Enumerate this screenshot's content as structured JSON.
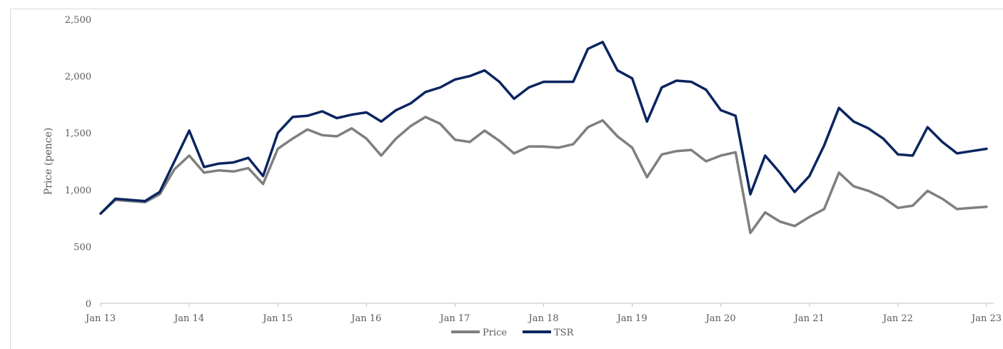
{
  "chart_data": {
    "type": "line",
    "title": "",
    "xlabel": "",
    "ylabel": "Price (pence)",
    "ylim": [
      0,
      2500
    ],
    "yticks": [
      0,
      500,
      1000,
      1500,
      2000,
      2500
    ],
    "ytick_labels": [
      "0",
      "500",
      "1,000",
      "1,500",
      "2,000",
      "2,500"
    ],
    "xlim": [
      "2013-01",
      "2023-01"
    ],
    "xticks": [
      "2013-01",
      "2014-01",
      "2015-01",
      "2016-01",
      "2017-01",
      "2018-01",
      "2019-01",
      "2020-01",
      "2021-01",
      "2022-01",
      "2023-01"
    ],
    "xtick_labels": [
      "Jan 13",
      "Jan 14",
      "Jan 15",
      "Jan 16",
      "Jan 17",
      "Jan 18",
      "Jan 19",
      "Jan 20",
      "Jan 21",
      "Jan 22",
      "Jan 23"
    ],
    "grid": false,
    "legend_position": "bottom-center",
    "series": [
      {
        "name": "Price",
        "color": "#7f7f7f",
        "x": [
          "2013-01",
          "2013-03",
          "2013-05",
          "2013-07",
          "2013-09",
          "2013-11",
          "2014-01",
          "2014-03",
          "2014-05",
          "2014-07",
          "2014-09",
          "2014-11",
          "2015-01",
          "2015-03",
          "2015-05",
          "2015-07",
          "2015-09",
          "2015-11",
          "2016-01",
          "2016-03",
          "2016-05",
          "2016-07",
          "2016-09",
          "2016-11",
          "2017-01",
          "2017-03",
          "2017-05",
          "2017-07",
          "2017-09",
          "2017-11",
          "2018-01",
          "2018-03",
          "2018-05",
          "2018-07",
          "2018-09",
          "2018-11",
          "2019-01",
          "2019-03",
          "2019-05",
          "2019-07",
          "2019-09",
          "2019-11",
          "2020-01",
          "2020-03",
          "2020-05",
          "2020-07",
          "2020-09",
          "2020-11",
          "2021-01",
          "2021-03",
          "2021-05",
          "2021-07",
          "2021-09",
          "2021-11",
          "2022-01",
          "2022-03",
          "2022-05",
          "2022-07",
          "2022-09",
          "2022-11",
          "2023-01"
        ],
        "values": [
          790,
          910,
          900,
          890,
          960,
          1180,
          1300,
          1150,
          1170,
          1160,
          1190,
          1050,
          1360,
          1450,
          1530,
          1480,
          1470,
          1540,
          1450,
          1300,
          1450,
          1560,
          1640,
          1580,
          1440,
          1420,
          1520,
          1430,
          1320,
          1380,
          1380,
          1370,
          1400,
          1550,
          1610,
          1470,
          1370,
          1110,
          1310,
          1340,
          1350,
          1250,
          1300,
          1330,
          620,
          800,
          720,
          680,
          760,
          830,
          1150,
          1030,
          990,
          930,
          840,
          860,
          990,
          920,
          830,
          840,
          850
        ]
      },
      {
        "name": "TSR",
        "color": "#0b2560",
        "x": [
          "2013-01",
          "2013-03",
          "2013-05",
          "2013-07",
          "2013-09",
          "2013-11",
          "2014-01",
          "2014-03",
          "2014-05",
          "2014-07",
          "2014-09",
          "2014-11",
          "2015-01",
          "2015-03",
          "2015-05",
          "2015-07",
          "2015-09",
          "2015-11",
          "2016-01",
          "2016-03",
          "2016-05",
          "2016-07",
          "2016-09",
          "2016-11",
          "2017-01",
          "2017-03",
          "2017-05",
          "2017-07",
          "2017-09",
          "2017-11",
          "2018-01",
          "2018-03",
          "2018-05",
          "2018-07",
          "2018-09",
          "2018-11",
          "2019-01",
          "2019-03",
          "2019-05",
          "2019-07",
          "2019-09",
          "2019-11",
          "2020-01",
          "2020-03",
          "2020-05",
          "2020-07",
          "2020-09",
          "2020-11",
          "2021-01",
          "2021-03",
          "2021-05",
          "2021-07",
          "2021-09",
          "2021-11",
          "2022-01",
          "2022-03",
          "2022-05",
          "2022-07",
          "2022-09",
          "2022-11",
          "2023-01"
        ],
        "values": [
          790,
          920,
          910,
          900,
          980,
          1250,
          1520,
          1200,
          1230,
          1240,
          1280,
          1120,
          1500,
          1640,
          1650,
          1690,
          1630,
          1660,
          1680,
          1600,
          1700,
          1760,
          1860,
          1900,
          1970,
          2000,
          2050,
          1950,
          1800,
          1900,
          1950,
          1950,
          1950,
          2240,
          2300,
          2050,
          1980,
          1600,
          1900,
          1960,
          1950,
          1880,
          1700,
          1650,
          960,
          1300,
          1150,
          980,
          1120,
          1390,
          1720,
          1600,
          1540,
          1450,
          1310,
          1300,
          1550,
          1420,
          1320,
          1340,
          1360
        ]
      }
    ]
  }
}
